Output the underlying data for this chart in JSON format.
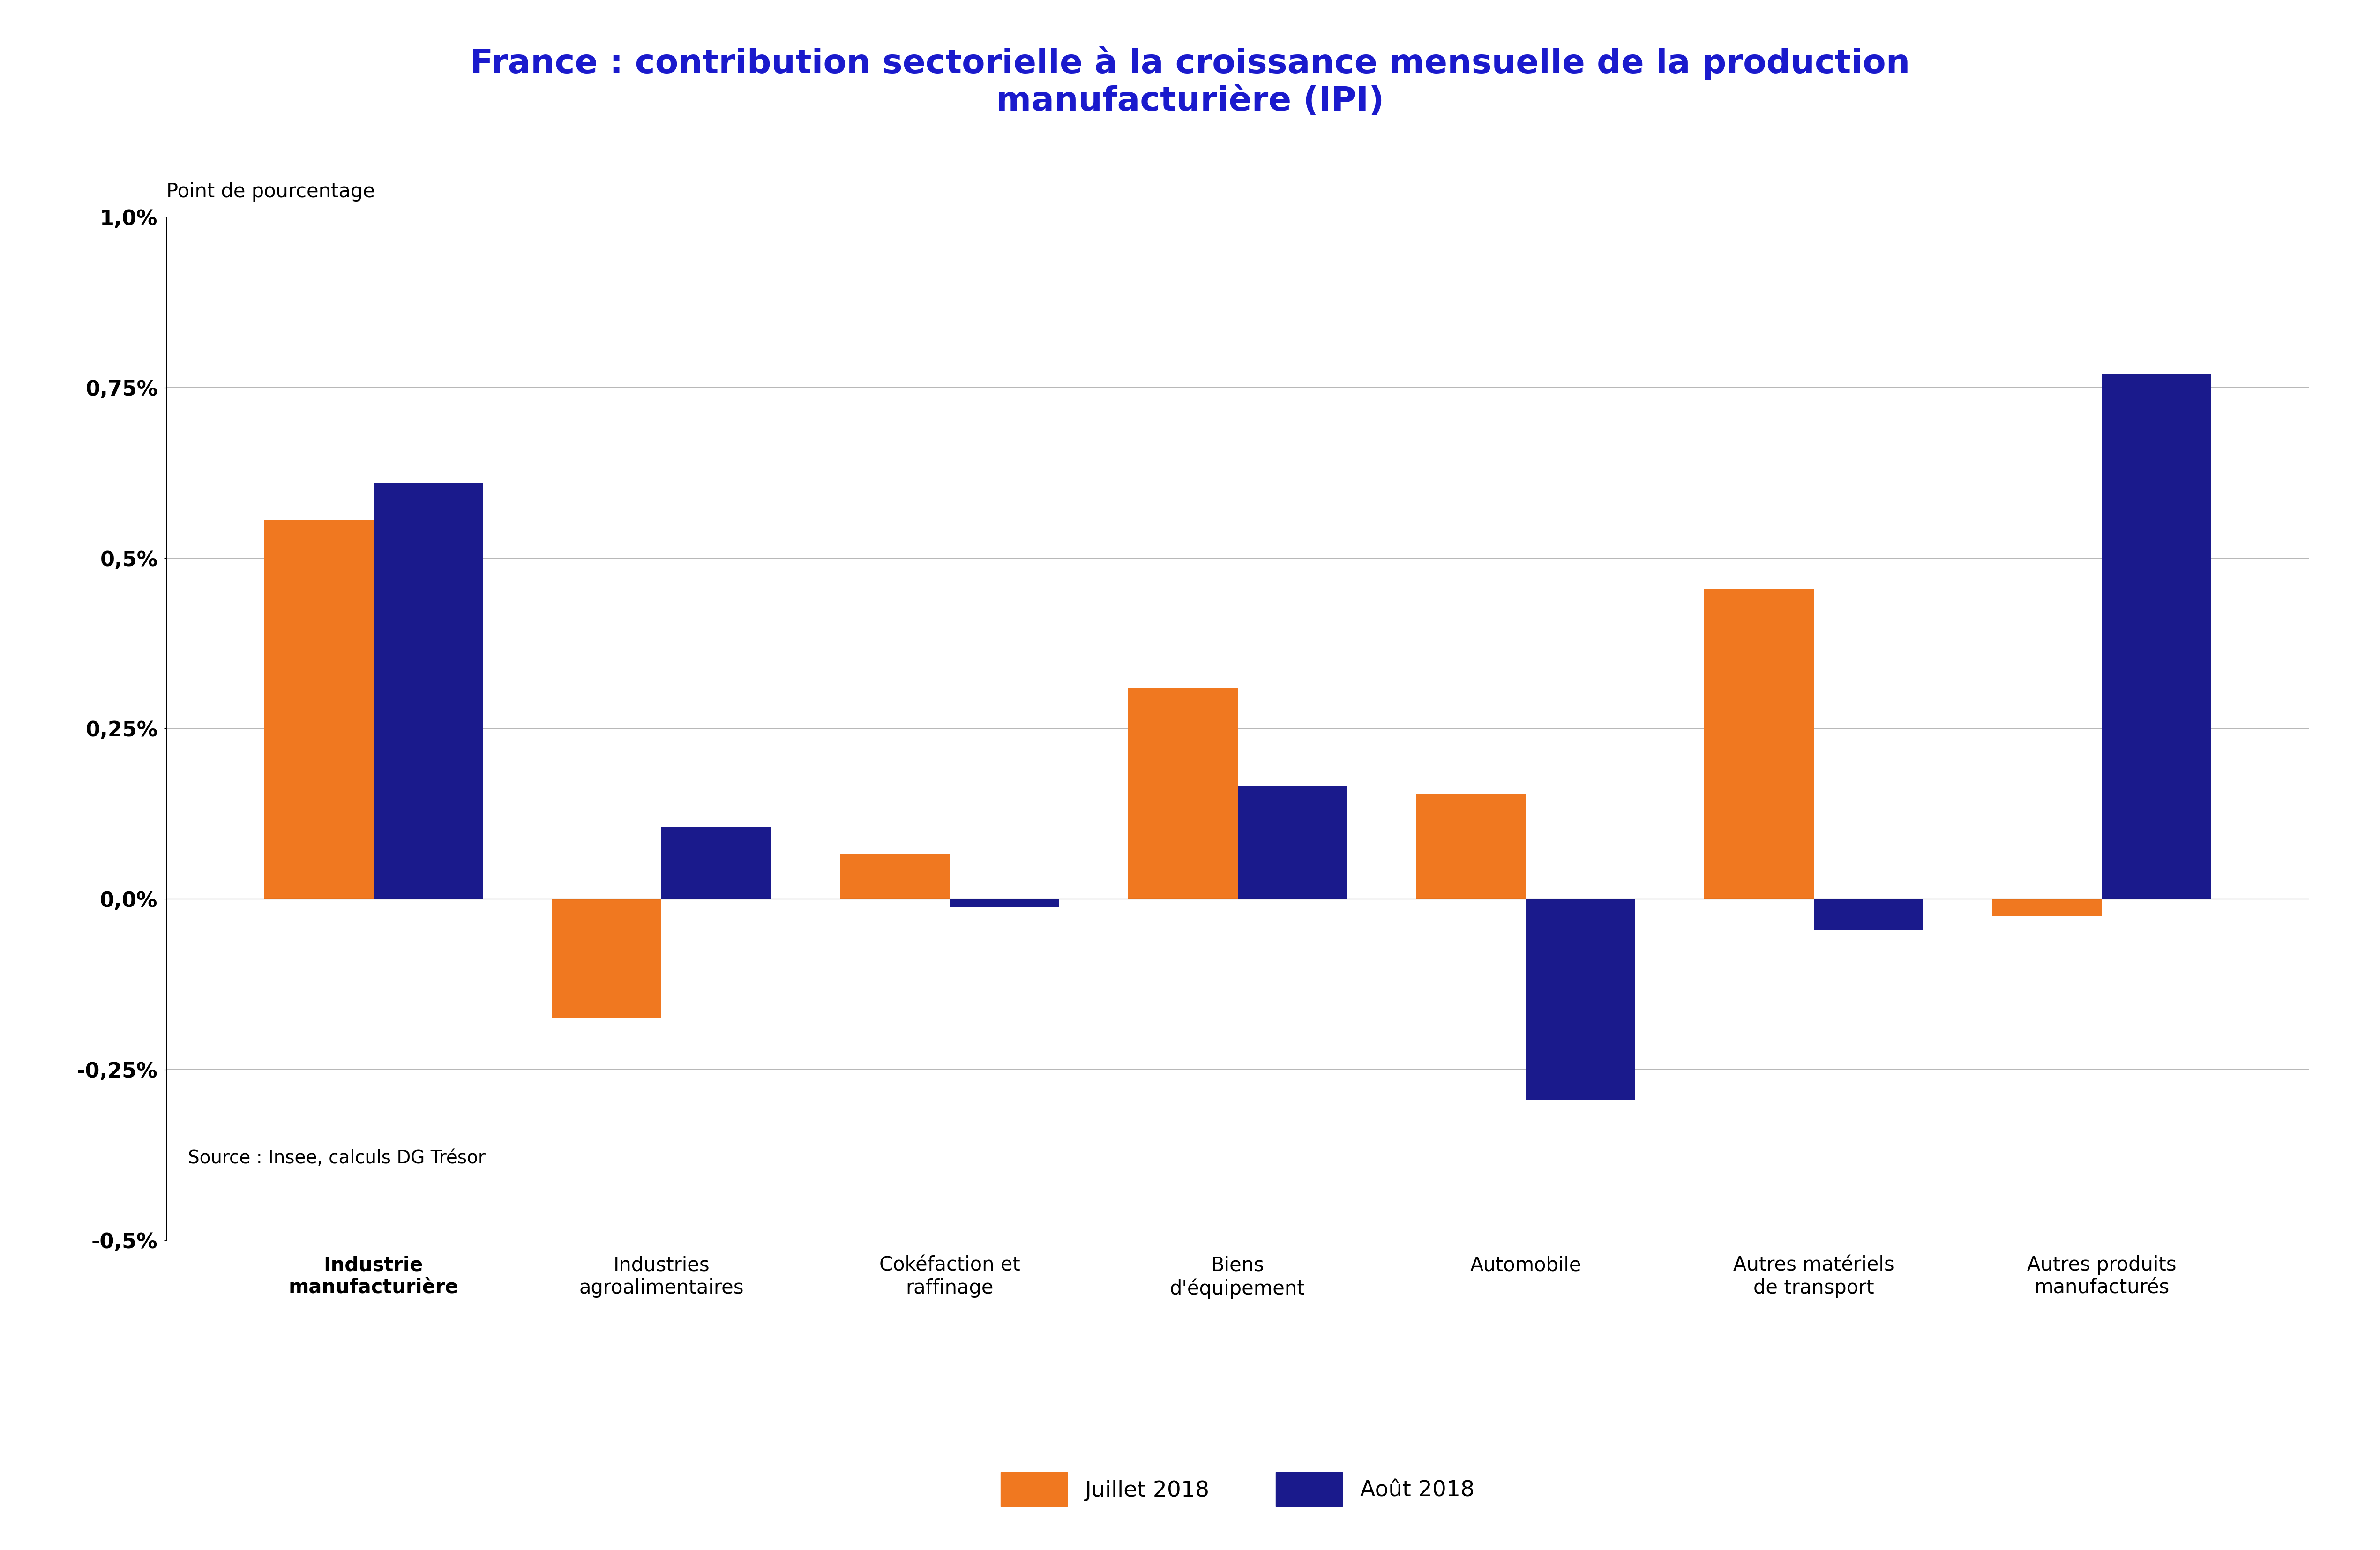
{
  "title_line1": "France : contribution sectorielle à la croissance mensuelle de la production",
  "title_line2": "manufacturière (IPI)",
  "title_color": "#1a1acc",
  "subtitle": "Point de pourcentage",
  "source": "Source : Insee, calculs DG Trésor",
  "categories": [
    "Industrie\nmanufacturière",
    "Industries\nagroalimentaires",
    "Cokéfaction et\nraffinage",
    "Biens\nd'équipement",
    "Automobile",
    "Autres matériels\nde transport",
    "Autres produits\nmanufacturés"
  ],
  "juillet_2018": [
    0.555,
    -0.175,
    0.065,
    0.31,
    0.155,
    0.455,
    -0.025
  ],
  "aout_2018": [
    0.61,
    0.105,
    -0.012,
    0.165,
    -0.295,
    -0.045,
    0.77
  ],
  "bar_color_juillet": "#f07820",
  "bar_color_aout": "#1a1a8c",
  "legend_juillet": "Juillet 2018",
  "legend_aout": "Août 2018",
  "ylim": [
    -0.5,
    1.0
  ],
  "yticks": [
    -0.5,
    -0.25,
    0.0,
    0.25,
    0.5,
    0.75,
    1.0
  ],
  "ytick_labels": [
    "-0,5%",
    "-0,25%",
    "0,0%",
    "0,25%",
    "0,5%",
    "0,75%",
    "1,0%"
  ],
  "background_color": "#ffffff",
  "grid_color": "#aaaaaa",
  "title_fontsize": 52,
  "xlabel_fontsize": 30,
  "tick_fontsize": 32,
  "legend_fontsize": 34,
  "subtitle_fontsize": 30,
  "source_fontsize": 28
}
